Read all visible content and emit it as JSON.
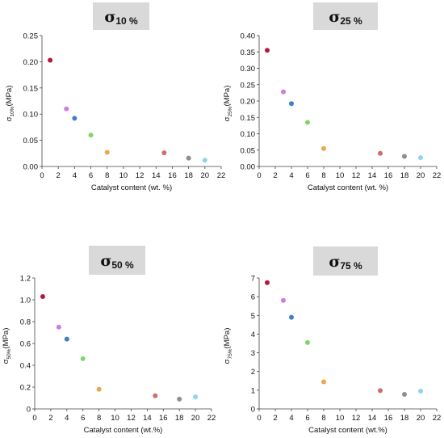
{
  "chart_data": [
    {
      "type": "scatter",
      "title_symbol": "σ",
      "title_subscript": "10 %",
      "xlabel": "Catalyst content (wt. %)",
      "ylabel_main": "σ",
      "ylabel_sub": "10%",
      "ylabel_unit": "(MPa)",
      "xlim": [
        0,
        22
      ],
      "ylim": [
        0,
        0.25
      ],
      "xticks": [
        "0",
        "2",
        "4",
        "6",
        "8",
        "10",
        "12",
        "14",
        "16",
        "18",
        "20",
        "22"
      ],
      "yticks": [
        "0.00",
        "0.05",
        "0.10",
        "0.15",
        "0.20",
        "0.25"
      ],
      "x": [
        1,
        3,
        4,
        6,
        8,
        15,
        18,
        20
      ],
      "y": [
        0.203,
        0.11,
        0.092,
        0.06,
        0.027,
        0.026,
        0.016,
        0.012
      ]
    },
    {
      "type": "scatter",
      "title_symbol": "σ",
      "title_subscript": "25 %",
      "xlabel": "Catalyst content (wt. %)",
      "ylabel_main": "σ",
      "ylabel_sub": "25%",
      "ylabel_unit": "(MPa)",
      "xlim": [
        0,
        22
      ],
      "ylim": [
        0,
        0.4
      ],
      "xticks": [
        "0",
        "2",
        "4",
        "6",
        "8",
        "10",
        "12",
        "14",
        "16",
        "18",
        "20",
        "22"
      ],
      "yticks": [
        "0.00",
        "0.05",
        "0.10",
        "0.15",
        "0.20",
        "0.25",
        "0.30",
        "0.35",
        "0.40"
      ],
      "x": [
        1,
        3,
        4,
        6,
        8,
        15,
        18,
        20
      ],
      "y": [
        0.355,
        0.228,
        0.192,
        0.135,
        0.055,
        0.04,
        0.031,
        0.027
      ]
    },
    {
      "type": "scatter",
      "title_symbol": "σ",
      "title_subscript": "50 %",
      "xlabel": "Catalyst content (wt.%)",
      "ylabel_main": "σ",
      "ylabel_sub": "50%",
      "ylabel_unit": "(MPa)",
      "xlim": [
        0,
        22
      ],
      "ylim": [
        0,
        1.2
      ],
      "xticks": [
        "0",
        "2",
        "4",
        "6",
        "8",
        "10",
        "12",
        "14",
        "16",
        "18",
        "20",
        "22"
      ],
      "yticks": [
        "0",
        "0.2",
        "0.4",
        "0.6",
        "0.8",
        "1.0",
        "1.2"
      ],
      "x": [
        1,
        3,
        4,
        6,
        8,
        15,
        18,
        20
      ],
      "y": [
        1.03,
        0.75,
        0.64,
        0.46,
        0.18,
        0.12,
        0.09,
        0.11
      ]
    },
    {
      "type": "scatter",
      "title_symbol": "σ",
      "title_subscript": "75 %",
      "xlabel": "Catalyst content (wt.%)",
      "ylabel_main": "σ",
      "ylabel_sub": "75%",
      "ylabel_unit": "(MPa)",
      "xlim": [
        0,
        22
      ],
      "ylim": [
        0,
        7
      ],
      "xticks": [
        "0",
        "2",
        "4",
        "6",
        "8",
        "10",
        "12",
        "14",
        "16",
        "18",
        "20",
        "22"
      ],
      "yticks": [
        "0",
        "1",
        "2",
        "3",
        "4",
        "5",
        "6",
        "7"
      ],
      "x": [
        1,
        3,
        4,
        6,
        8,
        15,
        18,
        20
      ],
      "y": [
        6.75,
        5.8,
        4.9,
        3.55,
        1.45,
        0.98,
        0.78,
        0.95
      ]
    }
  ],
  "point_colors": [
    "#b5173e",
    "#cc7de0",
    "#3f7fc6",
    "#82d46a",
    "#eda54f",
    "#cd6e68",
    "#8f8f8f",
    "#8fd3f0"
  ]
}
